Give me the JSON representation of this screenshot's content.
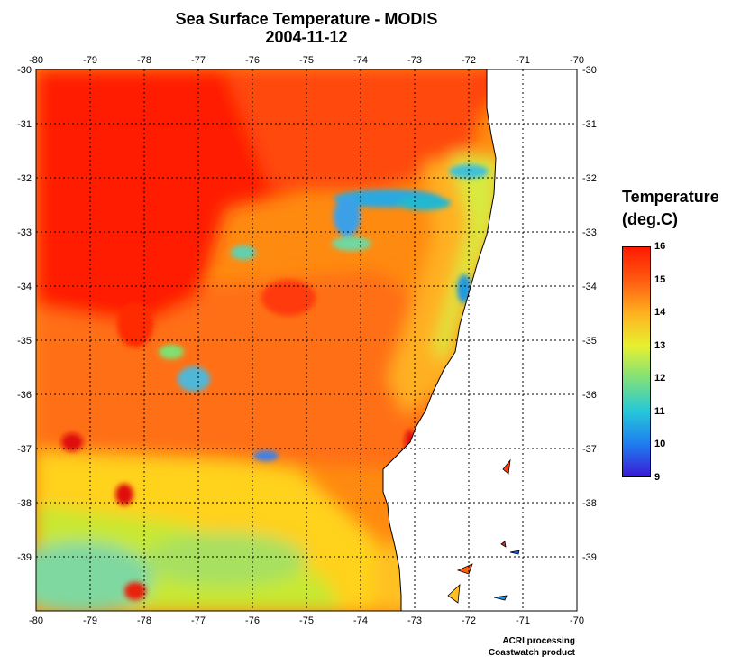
{
  "title": {
    "line1": "Sea Surface Temperature - MODIS",
    "line2": "2004-11-12"
  },
  "legend": {
    "title_line1": "Temperature",
    "title_line2": "(deg.C)",
    "ticks": [
      "16",
      "15",
      "14",
      "13",
      "12",
      "11",
      "10",
      "9"
    ],
    "min": 9,
    "max": 16,
    "colors": [
      "#3a1bd6",
      "#1f7ef0",
      "#25c8d8",
      "#7fe07a",
      "#e8f030",
      "#ffb020",
      "#ff5a10",
      "#ff1a00"
    ]
  },
  "map": {
    "lon_ticks": [
      "-80",
      "-79",
      "-78",
      "-77",
      "-76",
      "-75",
      "-74",
      "-73",
      "-72",
      "-71",
      "-70"
    ],
    "lat_ticks": [
      "-30",
      "-31",
      "-32",
      "-33",
      "-34",
      "-35",
      "-36",
      "-37",
      "-38",
      "-39"
    ],
    "lon_range": [
      -80,
      -70
    ],
    "lat_range": [
      -30,
      -40
    ],
    "land_color": "#ffffff",
    "grid": "dotted"
  },
  "credits": {
    "line1": "ACRI processing",
    "line2": "Coastwatch product"
  }
}
